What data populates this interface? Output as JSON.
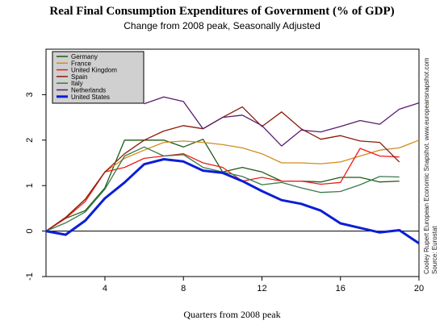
{
  "chart_data": {
    "type": "line",
    "title": "Real Final Consumption Expenditures of Government (% of GDP)",
    "subtitle": "Change from 2008 peak, Seasonally Adjusted",
    "xlabel": "Quarters from 2008 peak",
    "ylabel": "",
    "xlim": [
      1,
      20
    ],
    "ylim": [
      -1,
      4
    ],
    "x_ticks": [
      4,
      8,
      12,
      16,
      20
    ],
    "y_ticks": [
      -1,
      0,
      1,
      2,
      3
    ],
    "reference_line_y": 0,
    "legend_position": "top-left",
    "side_note_lines": [
      "Cooley Rupert European Economic Snapshot. www.europeansnapshot.com",
      "Source: Eurostat"
    ],
    "series": [
      {
        "name": "Germany",
        "color": "#1e5a14",
        "x": [
          1,
          2,
          3,
          4,
          5,
          6,
          7,
          8,
          9,
          10,
          11,
          12,
          13,
          14,
          15,
          16,
          17,
          18,
          19
        ],
        "values": [
          0,
          0.28,
          0.45,
          0.95,
          2.0,
          2.0,
          2.0,
          1.85,
          2.02,
          1.3,
          1.4,
          1.3,
          1.1,
          1.1,
          1.08,
          1.18,
          1.18,
          1.08,
          1.1
        ]
      },
      {
        "name": "France",
        "color": "#d48a1e",
        "x": [
          1,
          2,
          3,
          4,
          5,
          6,
          7,
          8,
          9,
          10,
          11,
          12,
          13,
          14,
          15,
          16,
          17,
          18,
          19,
          20
        ],
        "values": [
          0,
          0.3,
          0.7,
          1.3,
          1.6,
          1.78,
          1.95,
          1.98,
          1.95,
          1.9,
          1.83,
          1.7,
          1.5,
          1.5,
          1.48,
          1.52,
          1.65,
          1.78,
          1.83,
          2.0
        ]
      },
      {
        "name": "United Kingdom",
        "color": "#ee1c1c",
        "x": [
          1,
          2,
          3,
          4,
          5,
          6,
          7,
          8,
          9,
          10,
          11,
          12,
          13,
          14,
          15,
          16,
          17,
          18,
          19
        ],
        "values": [
          0,
          0.28,
          0.65,
          1.3,
          1.4,
          1.6,
          1.65,
          1.7,
          1.5,
          1.4,
          1.1,
          1.18,
          1.1,
          1.1,
          1.03,
          1.07,
          1.82,
          1.65,
          1.63
        ]
      },
      {
        "name": "Spain",
        "color": "#8b1a0a",
        "x": [
          1,
          2,
          3,
          4,
          5,
          6,
          7,
          8,
          9,
          10,
          11,
          12,
          13,
          14,
          15,
          16,
          17,
          18,
          19
        ],
        "values": [
          0,
          0.3,
          0.7,
          1.3,
          1.7,
          2.0,
          2.2,
          2.32,
          2.25,
          2.5,
          2.73,
          2.3,
          2.62,
          2.25,
          2.02,
          2.1,
          1.98,
          1.95,
          1.52
        ]
      },
      {
        "name": "Italy",
        "color": "#3a7a4a",
        "x": [
          1,
          2,
          3,
          4,
          5,
          6,
          7,
          8,
          9,
          10,
          11,
          12,
          13,
          14,
          15,
          16,
          17,
          18,
          19
        ],
        "values": [
          0,
          0.18,
          0.42,
          0.92,
          1.65,
          1.85,
          1.65,
          1.68,
          1.4,
          1.3,
          1.2,
          1.02,
          1.07,
          0.95,
          0.85,
          0.87,
          1.02,
          1.2,
          1.19
        ]
      },
      {
        "name": "Netherlands",
        "color": "#5a1a6e",
        "x": [
          6,
          7,
          8,
          9,
          10,
          11,
          12,
          13,
          14,
          15,
          16,
          17,
          18,
          19,
          20
        ],
        "values": [
          2.8,
          2.95,
          2.85,
          2.25,
          2.5,
          2.55,
          2.32,
          1.87,
          2.22,
          2.18,
          2.3,
          2.43,
          2.35,
          2.68,
          2.82
        ]
      },
      {
        "name": "United States",
        "color": "#0b1ed6",
        "x": [
          1,
          2,
          3,
          4,
          5,
          6,
          7,
          8,
          9,
          10,
          11,
          12,
          13,
          14,
          15,
          16,
          17,
          18,
          19,
          20
        ],
        "values": [
          0,
          -0.08,
          0.23,
          0.72,
          1.07,
          1.47,
          1.58,
          1.53,
          1.33,
          1.28,
          1.1,
          0.88,
          0.68,
          0.6,
          0.45,
          0.17,
          0.07,
          -0.03,
          0.02,
          -0.27
        ]
      }
    ]
  }
}
